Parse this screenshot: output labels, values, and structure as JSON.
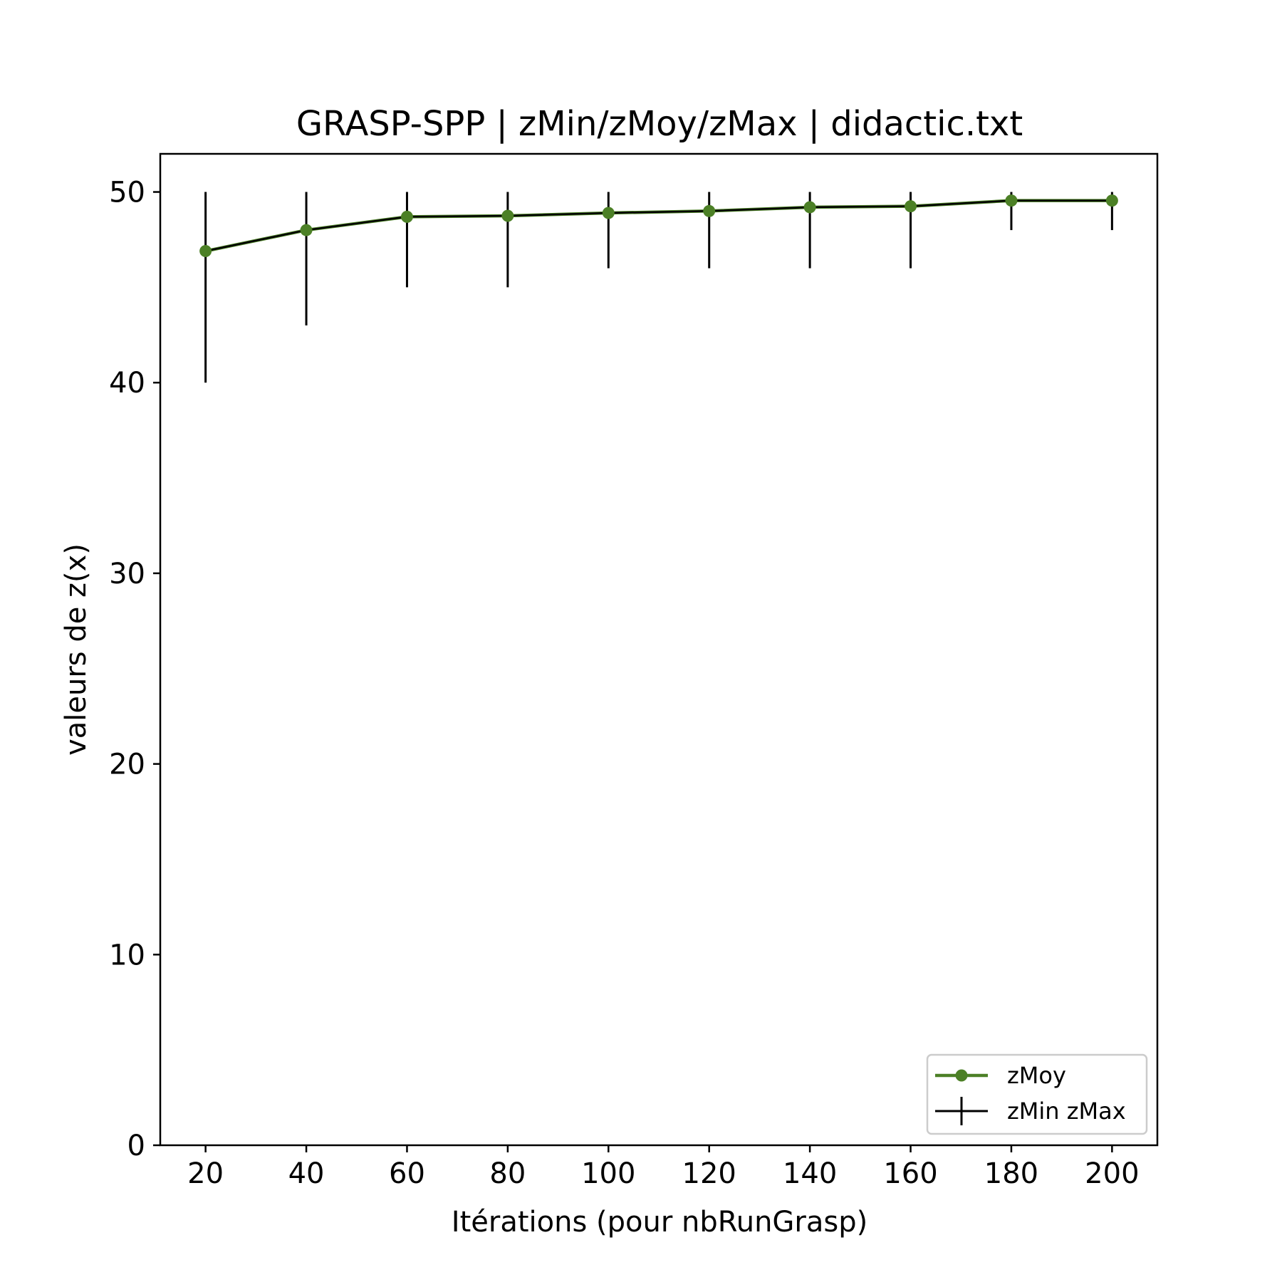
{
  "chart_data": {
    "type": "line",
    "title": "GRASP-SPP | zMin/zMoy/zMax | didactic.txt",
    "xlabel": "Itérations (pour nbRunGrasp)",
    "ylabel": "valeurs de z(x)",
    "x": [
      20,
      40,
      60,
      80,
      100,
      120,
      140,
      160,
      180,
      200
    ],
    "series": [
      {
        "name": "zMoy",
        "values": [
          46.9,
          48.0,
          48.7,
          48.75,
          48.9,
          49.0,
          49.2,
          49.25,
          49.55,
          49.55
        ],
        "color": "#4c8026"
      },
      {
        "name": "zMin zMax",
        "min": [
          40,
          43,
          45,
          45,
          46,
          46,
          46,
          46,
          48,
          48
        ],
        "max": [
          50,
          50,
          50,
          50,
          50,
          50,
          50,
          50,
          50,
          50
        ],
        "color": "#000000"
      }
    ],
    "xticks": [
      "20",
      "40",
      "60",
      "80",
      "100",
      "120",
      "140",
      "160",
      "180",
      "200"
    ],
    "yticks": [
      "0",
      "10",
      "20",
      "30",
      "40",
      "50"
    ],
    "xlim": [
      11.0,
      209.0
    ],
    "ylim": [
      0,
      52
    ],
    "grid": false,
    "legend_position": "lower-right"
  }
}
